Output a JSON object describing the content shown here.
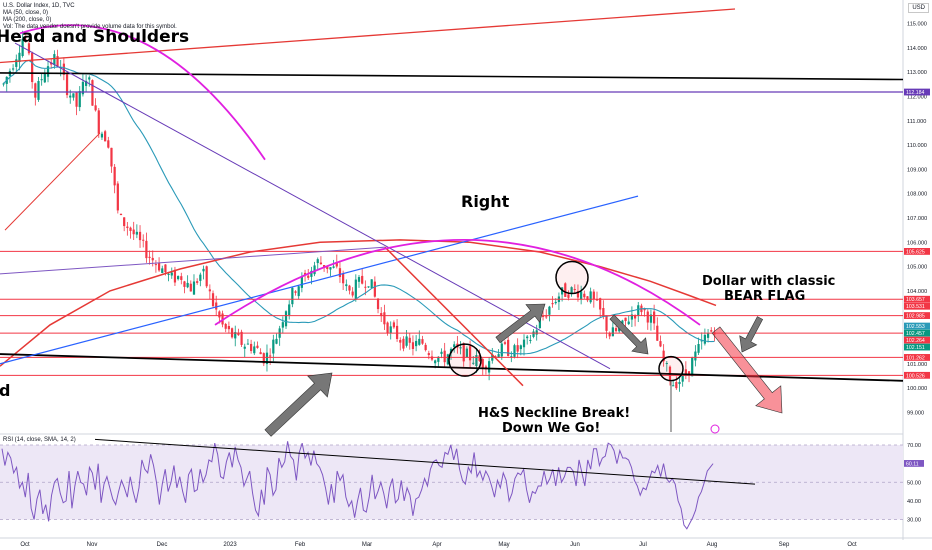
{
  "header": {
    "title": "U.S. Dollar Index, 1D, TVC",
    "ma1": "MA (50, close, 0)",
    "ma2": "MA (200, close, 0)",
    "vol_note": "Vol: The data vendor doesn't provide volume data for this symbol.",
    "currency": "USD"
  },
  "rsi_header": "RSI (14, close, SMA, 14, 2)",
  "annotations": {
    "head_and_shoulders": "Head and Shoulders",
    "right": "Right",
    "bear_flag_line1": "Dollar with classic",
    "bear_flag_line2": "BEAR FLAG",
    "neckline_line1": "H&S Neckline Break!",
    "neckline_line2": "Down We Go!",
    "left_d": "d"
  },
  "colors": {
    "up": "#089981",
    "down": "#f23645",
    "ma50": "#2a9ab8",
    "ma200": "#e53935",
    "arc": "#e020e0",
    "trend_blue": "#2962ff",
    "purple": "#673ab7",
    "rsi_fill": "#ede7f6",
    "rsi_line": "#7e57c2"
  },
  "chart_data": {
    "type": "candlestick",
    "symbol": "U.S. Dollar Index",
    "timeframe": "1D",
    "x_ticks": [
      "Oct",
      "Nov",
      "Dec",
      "2023",
      "Feb",
      "Mar",
      "Apr",
      "May",
      "Jun",
      "Jul",
      "Aug",
      "Sep",
      "Oct"
    ],
    "y_ticks": [
      "99.000",
      "100.000",
      "101.000",
      "102.000",
      "103.000",
      "104.000",
      "105.000",
      "106.000",
      "107.000",
      "108.000",
      "109.000",
      "110.000",
      "111.000",
      "112.000",
      "113.000",
      "114.000",
      "115.000"
    ],
    "y_range": [
      98.7,
      116.5
    ],
    "price_tags": [
      {
        "label": "112.184",
        "value": 112.184,
        "color": "#673ab7"
      },
      {
        "label": "105.625",
        "value": 105.625,
        "color": "#f23645"
      },
      {
        "label": "103.657",
        "value": 103.657,
        "color": "#f23645"
      },
      {
        "label": "103.531",
        "value": 103.531,
        "color": "#f23645"
      },
      {
        "label": "102.985",
        "value": 102.985,
        "color": "#f23645"
      },
      {
        "label": "102.553",
        "value": 102.553,
        "color": "#2a9ab8"
      },
      {
        "label": "102.151",
        "value": 102.151,
        "color": "#089981"
      },
      {
        "label": "102.457",
        "value": 102.457,
        "color": "#089981"
      },
      {
        "label": "102.264",
        "value": 102.264,
        "color": "#f23645"
      },
      {
        "label": "101.262",
        "value": 101.262,
        "color": "#f23645"
      },
      {
        "label": "100.526",
        "value": 100.526,
        "color": "#f23645"
      }
    ],
    "path": [
      [
        0,
        112.5
      ],
      [
        0.02,
        113.5
      ],
      [
        0.04,
        114.6
      ],
      [
        0.06,
        112.0
      ],
      [
        0.08,
        113.2
      ],
      [
        0.1,
        113.6
      ],
      [
        0.12,
        112.4
      ],
      [
        0.14,
        111.6
      ],
      [
        0.16,
        113.0
      ],
      [
        0.18,
        110.8
      ],
      [
        0.2,
        110.2
      ],
      [
        0.22,
        107.0
      ],
      [
        0.24,
        106.6
      ],
      [
        0.26,
        106.0
      ],
      [
        0.28,
        105.4
      ],
      [
        0.3,
        105.0
      ],
      [
        0.32,
        104.5
      ],
      [
        0.34,
        104.6
      ],
      [
        0.36,
        104.1
      ],
      [
        0.38,
        104.8
      ],
      [
        0.4,
        103.5
      ],
      [
        0.42,
        102.5
      ],
      [
        0.44,
        102.1
      ],
      [
        0.46,
        101.8
      ],
      [
        0.48,
        101.7
      ],
      [
        0.5,
        101.2
      ],
      [
        0.52,
        102.0
      ],
      [
        0.54,
        103.3
      ],
      [
        0.56,
        104.2
      ],
      [
        0.58,
        104.6
      ],
      [
        0.6,
        105.2
      ],
      [
        0.62,
        105.0
      ],
      [
        0.64,
        104.8
      ],
      [
        0.66,
        103.9
      ],
      [
        0.68,
        104.3
      ],
      [
        0.7,
        104.5
      ],
      [
        0.72,
        103.0
      ],
      [
        0.74,
        102.4
      ],
      [
        0.76,
        102.0
      ],
      [
        0.78,
        101.7
      ],
      [
        0.8,
        101.9
      ],
      [
        0.82,
        101.4
      ],
      [
        0.84,
        101.2
      ],
      [
        0.86,
        101.6
      ],
      [
        0.88,
        101.4
      ],
      [
        0.9,
        101.2
      ],
      [
        0.92,
        101.0
      ],
      [
        0.94,
        101.5
      ],
      [
        0.96,
        101.6
      ],
      [
        0.98,
        101.5
      ],
      [
        1.0,
        101.8
      ],
      [
        1.02,
        102.5
      ],
      [
        1.04,
        103.2
      ],
      [
        1.06,
        103.8
      ],
      [
        1.08,
        104.0
      ],
      [
        1.1,
        104.0
      ],
      [
        1.12,
        103.8
      ],
      [
        1.14,
        103.2
      ],
      [
        1.16,
        102.2
      ],
      [
        1.18,
        102.4
      ],
      [
        1.2,
        103.0
      ],
      [
        1.22,
        103.3
      ],
      [
        1.24,
        102.8
      ],
      [
        1.26,
        101.2
      ],
      [
        1.28,
        100.2
      ],
      [
        1.3,
        100.4
      ],
      [
        1.32,
        101.2
      ],
      [
        1.34,
        102.0
      ],
      [
        1.36,
        102.5
      ]
    ],
    "rsi": {
      "y_ticks": [
        "30.00",
        "40.00",
        "50.00",
        "60.00",
        "70.00"
      ],
      "band": [
        30,
        70
      ],
      "current": "60.11",
      "values": [
        68,
        59,
        66,
        63,
        55,
        58,
        47,
        50,
        42,
        55,
        36,
        30,
        41,
        46,
        33,
        38,
        29,
        43,
        50,
        52,
        44,
        39,
        40,
        56,
        36,
        48,
        56,
        50,
        49,
        43,
        58,
        55,
        46,
        60,
        39,
        49,
        53,
        47,
        41,
        38,
        45,
        51,
        47,
        42,
        53,
        45,
        39,
        47,
        62,
        57,
        55,
        65,
        59,
        50,
        38,
        49,
        57,
        45,
        50,
        59,
        47,
        53,
        45,
        39,
        54,
        57,
        45,
        46,
        57,
        50,
        54,
        62,
        61,
        71,
        65,
        53,
        52,
        61,
        66,
        58,
        69,
        62,
        58,
        48,
        52,
        56,
        44,
        35,
        32,
        46,
        38,
        58,
        54,
        43,
        46,
        63,
        58,
        61,
        72,
        64,
        62,
        51,
        66,
        71,
        63,
        66,
        59,
        67,
        60,
        58,
        54,
        47,
        38,
        49,
        39,
        56,
        51,
        54,
        42,
        37,
        40,
        31,
        40,
        47,
        35,
        34,
        42,
        54,
        41,
        45,
        50,
        44,
        36,
        47,
        52,
        39,
        41,
        51,
        40,
        47,
        43,
        32,
        41,
        42,
        46,
        52,
        48,
        57,
        61,
        62,
        59,
        58,
        66,
        65,
        70,
        62,
        68,
        57,
        51,
        49,
        58,
        55,
        66,
        53,
        56,
        51,
        56,
        53,
        48,
        42,
        51,
        47,
        55,
        51,
        40,
        44,
        52,
        55,
        54,
        57,
        46,
        39,
        45,
        44,
        48,
        48,
        56,
        49,
        52,
        57,
        48,
        58,
        50,
        53,
        58,
        58,
        56,
        48,
        62,
        55,
        48,
        62,
        57,
        68,
        68,
        59,
        63,
        64,
        71,
        70,
        67,
        60,
        67,
        63,
        63,
        62,
        58,
        51,
        48,
        43,
        47,
        46,
        51,
        56,
        55,
        59,
        53,
        60,
        52,
        50,
        52,
        49,
        40,
        36,
        27,
        25,
        28,
        31,
        35,
        42,
        45,
        50,
        56,
        58,
        60
      ]
    }
  }
}
